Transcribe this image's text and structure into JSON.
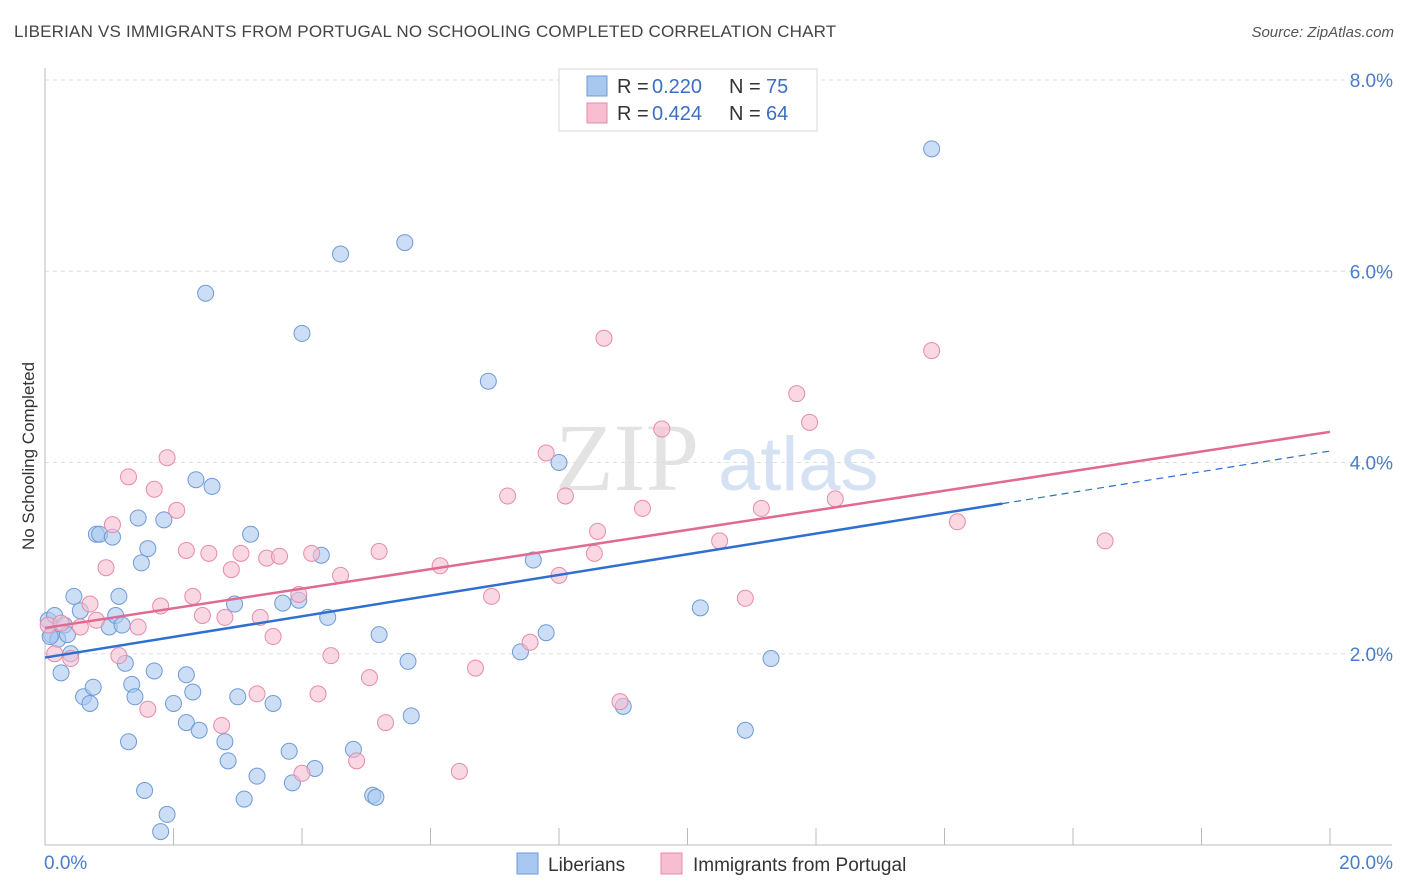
{
  "title": "LIBERIAN VS IMMIGRANTS FROM PORTUGAL NO SCHOOLING COMPLETED CORRELATION CHART",
  "source": "Source: ZipAtlas.com",
  "watermark": {
    "zip": "ZIP",
    "atlas": "atlas"
  },
  "legend": {
    "r_label": "R =",
    "n_label": "N =",
    "series": [
      {
        "r": "0.220",
        "n": "75"
      },
      {
        "r": "0.424",
        "n": "64"
      }
    ]
  },
  "bottom_legend": [
    "Liberians",
    "Immigrants from Portugal"
  ],
  "colors": {
    "blue_fill": "#a9c8ef",
    "blue_stroke": "#6f9ad6",
    "blue_line": "#2e6fcf",
    "pink_fill": "#f6bed0",
    "pink_stroke": "#e88aa8",
    "pink_line": "#e06a92",
    "tick_label": "#4a7cc9"
  },
  "chart_data": {
    "type": "scatter",
    "xlabel": "",
    "ylabel": "No Schooling Completed",
    "xlim": [
      0,
      20
    ],
    "ylim": [
      0,
      8
    ],
    "x_tick_labels": [
      "0.0%",
      "20.0%"
    ],
    "y_ticks": [
      2,
      4,
      6,
      8
    ],
    "y_tick_labels": [
      "2.0%",
      "4.0%",
      "6.0%",
      "8.0%"
    ],
    "grid": true,
    "legend_position": "top-center",
    "series": [
      {
        "name": "Liberians",
        "trend": {
          "x": [
            0,
            14.9
          ],
          "y": [
            1.96,
            3.57
          ],
          "dashed_to": [
            20,
            4.12
          ]
        },
        "points": [
          [
            0.05,
            2.35
          ],
          [
            0.1,
            2.2
          ],
          [
            0.15,
            2.4
          ],
          [
            0.2,
            2.15
          ],
          [
            0.25,
            1.8
          ],
          [
            0.3,
            2.3
          ],
          [
            0.35,
            2.2
          ],
          [
            0.4,
            2.0
          ],
          [
            0.45,
            2.6
          ],
          [
            0.55,
            2.45
          ],
          [
            0.6,
            1.55
          ],
          [
            0.7,
            1.48
          ],
          [
            0.75,
            1.65
          ],
          [
            0.8,
            3.25
          ],
          [
            0.85,
            3.25
          ],
          [
            1.0,
            2.28
          ],
          [
            1.05,
            3.22
          ],
          [
            1.1,
            2.4
          ],
          [
            1.15,
            2.6
          ],
          [
            1.2,
            2.3
          ],
          [
            1.25,
            1.9
          ],
          [
            1.3,
            1.08
          ],
          [
            1.35,
            1.68
          ],
          [
            1.4,
            1.55
          ],
          [
            1.45,
            3.42
          ],
          [
            1.5,
            2.95
          ],
          [
            1.55,
            0.57
          ],
          [
            1.6,
            3.1
          ],
          [
            1.7,
            1.82
          ],
          [
            1.8,
            0.14
          ],
          [
            1.85,
            3.4
          ],
          [
            1.9,
            0.32
          ],
          [
            2.0,
            1.48
          ],
          [
            2.2,
            1.78
          ],
          [
            2.2,
            1.28
          ],
          [
            2.3,
            1.6
          ],
          [
            2.35,
            3.82
          ],
          [
            2.4,
            1.2
          ],
          [
            2.5,
            5.77
          ],
          [
            2.6,
            3.75
          ],
          [
            2.8,
            1.08
          ],
          [
            2.85,
            0.88
          ],
          [
            2.95,
            2.52
          ],
          [
            3.0,
            1.55
          ],
          [
            3.1,
            0.48
          ],
          [
            3.2,
            3.25
          ],
          [
            3.3,
            0.72
          ],
          [
            3.55,
            1.48
          ],
          [
            3.7,
            2.53
          ],
          [
            3.8,
            0.98
          ],
          [
            3.85,
            0.65
          ],
          [
            3.95,
            2.56
          ],
          [
            4.0,
            5.35
          ],
          [
            4.2,
            0.8
          ],
          [
            4.3,
            3.03
          ],
          [
            4.4,
            2.38
          ],
          [
            4.6,
            6.18
          ],
          [
            4.8,
            1.0
          ],
          [
            5.1,
            0.52
          ],
          [
            5.15,
            0.5
          ],
          [
            5.2,
            2.2
          ],
          [
            5.6,
            6.3
          ],
          [
            5.65,
            1.92
          ],
          [
            5.7,
            1.35
          ],
          [
            6.9,
            4.85
          ],
          [
            7.4,
            2.02
          ],
          [
            7.6,
            2.98
          ],
          [
            7.8,
            2.22
          ],
          [
            8.0,
            4.0
          ],
          [
            9.0,
            1.45
          ],
          [
            10.2,
            2.48
          ],
          [
            10.9,
            1.2
          ],
          [
            11.3,
            1.95
          ],
          [
            13.8,
            7.28
          ],
          [
            0.08,
            2.18
          ]
        ]
      },
      {
        "name": "Immigrants from Portugal",
        "trend": {
          "x": [
            0,
            20
          ],
          "y": [
            2.27,
            4.32
          ]
        },
        "points": [
          [
            0.05,
            2.3
          ],
          [
            0.15,
            2.0
          ],
          [
            0.25,
            2.32
          ],
          [
            0.4,
            1.95
          ],
          [
            0.55,
            2.28
          ],
          [
            0.7,
            2.52
          ],
          [
            0.8,
            2.35
          ],
          [
            0.95,
            2.9
          ],
          [
            1.05,
            3.35
          ],
          [
            1.15,
            1.98
          ],
          [
            1.3,
            3.85
          ],
          [
            1.45,
            2.28
          ],
          [
            1.6,
            1.42
          ],
          [
            1.7,
            3.72
          ],
          [
            1.8,
            2.5
          ],
          [
            1.9,
            4.05
          ],
          [
            2.05,
            3.5
          ],
          [
            2.2,
            3.08
          ],
          [
            2.3,
            2.6
          ],
          [
            2.45,
            2.4
          ],
          [
            2.55,
            3.05
          ],
          [
            2.75,
            1.25
          ],
          [
            2.8,
            2.38
          ],
          [
            2.9,
            2.88
          ],
          [
            3.05,
            3.05
          ],
          [
            3.3,
            1.58
          ],
          [
            3.35,
            2.38
          ],
          [
            3.45,
            3.0
          ],
          [
            3.55,
            2.18
          ],
          [
            3.65,
            3.02
          ],
          [
            3.95,
            2.62
          ],
          [
            4.0,
            0.75
          ],
          [
            4.15,
            3.05
          ],
          [
            4.25,
            1.58
          ],
          [
            4.45,
            1.98
          ],
          [
            4.6,
            2.82
          ],
          [
            4.85,
            0.88
          ],
          [
            5.05,
            1.75
          ],
          [
            5.2,
            3.07
          ],
          [
            5.3,
            1.28
          ],
          [
            6.15,
            2.92
          ],
          [
            6.45,
            0.77
          ],
          [
            6.7,
            1.85
          ],
          [
            6.95,
            2.6
          ],
          [
            7.2,
            3.65
          ],
          [
            7.55,
            2.12
          ],
          [
            7.8,
            4.1
          ],
          [
            8.0,
            2.82
          ],
          [
            8.1,
            3.65
          ],
          [
            8.55,
            3.05
          ],
          [
            8.6,
            3.28
          ],
          [
            8.7,
            5.3
          ],
          [
            8.95,
            1.5
          ],
          [
            9.3,
            3.52
          ],
          [
            9.6,
            4.35
          ],
          [
            10.5,
            3.18
          ],
          [
            10.9,
            2.58
          ],
          [
            11.15,
            3.52
          ],
          [
            11.7,
            4.72
          ],
          [
            11.9,
            4.42
          ],
          [
            12.3,
            3.62
          ],
          [
            13.8,
            5.17
          ],
          [
            14.2,
            3.38
          ],
          [
            16.5,
            3.18
          ]
        ]
      }
    ]
  }
}
